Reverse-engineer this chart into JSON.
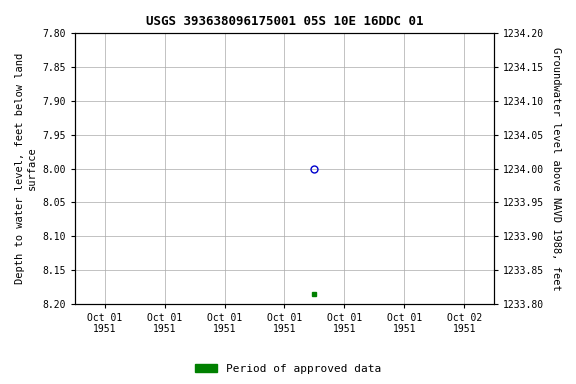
{
  "title": "USGS 393638096175001 05S 10E 16DDC 01",
  "ylabel_left": "Depth to water level, feet below land\nsurface",
  "ylabel_right": "Groundwater level above NAVD 1988, feet",
  "ylim_left_top": 7.8,
  "ylim_left_bottom": 8.2,
  "ylim_right_top": 1234.2,
  "ylim_right_bottom": 1233.8,
  "yticks_left": [
    7.8,
    7.85,
    7.9,
    7.95,
    8.0,
    8.05,
    8.1,
    8.15,
    8.2
  ],
  "yticks_right": [
    1234.2,
    1234.15,
    1234.1,
    1234.05,
    1234.0,
    1233.95,
    1233.9,
    1233.85,
    1233.8
  ],
  "ytick_labels_right": [
    "1234.20",
    "1234.15",
    "1234.10",
    "1234.05",
    "1234.00",
    "1233.95",
    "1233.90",
    "1233.85",
    "1233.80"
  ],
  "blue_point_x": 3.5,
  "blue_point_y": 8.0,
  "green_point_x": 3.5,
  "green_point_y": 8.185,
  "n_xticks": 7,
  "xtick_labels": [
    "Oct 01\n1951",
    "Oct 01\n1951",
    "Oct 01\n1951",
    "Oct 01\n1951",
    "Oct 01\n1951",
    "Oct 01\n1951",
    "Oct 02\n1951"
  ],
  "xlim": [
    -0.5,
    6.5
  ],
  "bg_color": "#ffffff",
  "grid_color": "#aaaaaa",
  "legend_label": "Period of approved data",
  "legend_color": "#008000",
  "title_fontsize": 9,
  "tick_fontsize": 7,
  "label_fontsize": 7.5,
  "legend_fontsize": 8
}
